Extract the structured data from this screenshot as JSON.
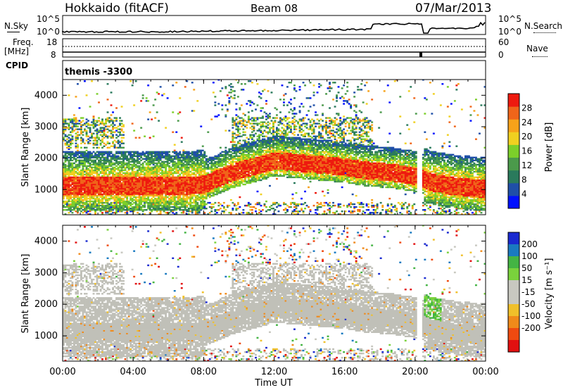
{
  "header": {
    "station": "Hokkaido (fitACF)",
    "beam": "Beam 08",
    "date": "07/Mar/2013"
  },
  "param_panels": {
    "nsky_label": "N.Sky",
    "nsky_ticks": [
      "10^5",
      "10^0"
    ],
    "nsearch_label": "N.Search",
    "nsearch_ticks": [
      "10^5",
      "10^0"
    ],
    "freq_label": "Freq.",
    "freq_unit": "[MHz]",
    "freq_ticks": [
      "18",
      "8"
    ],
    "nave_label": "Nave",
    "nave_ticks": [
      "60",
      "0"
    ],
    "cpid_label": "CPID",
    "cpid_value": "themis -3300"
  },
  "colors": {
    "power_scale": [
      "#0010ff",
      "#1f4fa8",
      "#2a7a5c",
      "#4b9a4b",
      "#7ccf2a",
      "#f0d020",
      "#f7a21a",
      "#f0651a",
      "#ee1a0f"
    ],
    "velocity_scale": [
      "#1a2ad0",
      "#1a7ac0",
      "#44b444",
      "#7ad23c",
      "#c8c8c0",
      "#c8c8c0",
      "#f0c02a",
      "#f08a1a",
      "#ef4a10",
      "#e21010"
    ],
    "ground_scatter": "#c0c0b8"
  },
  "chart_data": [
    {
      "type": "heatmap",
      "name": "power",
      "xlabel": "",
      "ylabel": "Slant Range [km]",
      "xlim": [
        "00:00",
        "24:00"
      ],
      "ylim": [
        200,
        4500
      ],
      "yticks": [
        "1000",
        "2000",
        "3000",
        "4000"
      ],
      "colorbar": {
        "label": "Power [dB]",
        "ticks": [
          "4",
          "8",
          "12",
          "16",
          "20",
          "24",
          "28"
        ],
        "range": [
          0,
          32
        ]
      },
      "series": [
        {
          "name": "",
          "x": [
            0,
            1,
            2,
            3,
            4,
            5,
            6,
            7,
            8,
            9,
            10,
            11,
            12,
            13,
            14,
            15,
            16,
            17,
            18,
            19,
            20,
            21,
            22,
            23,
            24
          ],
          "y": [
            1100,
            1100,
            1100,
            1100,
            1100,
            1100,
            1100,
            1100,
            1150,
            1400,
            1600,
            1750,
            1900,
            1850,
            1800,
            1750,
            1700,
            1600,
            1550,
            1500,
            1400,
            1200,
            1100,
            1050,
            1000
          ]
        }
      ]
    },
    {
      "type": "heatmap",
      "name": "velocity",
      "xlabel": "Time UT",
      "ylabel": "Slant Range [km]",
      "xlim": [
        "00:00",
        "24:00"
      ],
      "ylim": [
        200,
        4500
      ],
      "xticks": [
        "00:00",
        "04:00",
        "08:00",
        "12:00",
        "16:00",
        "20:00",
        "00:00"
      ],
      "yticks": [
        "1000",
        "2000",
        "3000",
        "4000"
      ],
      "colorbar": {
        "label": "Velocity [m s⁻¹]",
        "ticks": [
          "200",
          "100",
          "50",
          "15",
          "-15",
          "-50",
          "-100",
          "-200"
        ],
        "range": [
          -250,
          250
        ]
      },
      "series": [
        {
          "name": "",
          "x": [
            0,
            1,
            2,
            3,
            4,
            5,
            6,
            7,
            8,
            9,
            10,
            11,
            12,
            13,
            14,
            15,
            16,
            17,
            18,
            19,
            20,
            21,
            22,
            23,
            24
          ],
          "y": [
            1100,
            1100,
            1100,
            1100,
            1100,
            1100,
            1100,
            1100,
            1150,
            1400,
            1600,
            1750,
            1900,
            1850,
            1800,
            1750,
            1700,
            1600,
            1550,
            1500,
            1400,
            1200,
            1100,
            1050,
            1000
          ]
        }
      ]
    }
  ]
}
